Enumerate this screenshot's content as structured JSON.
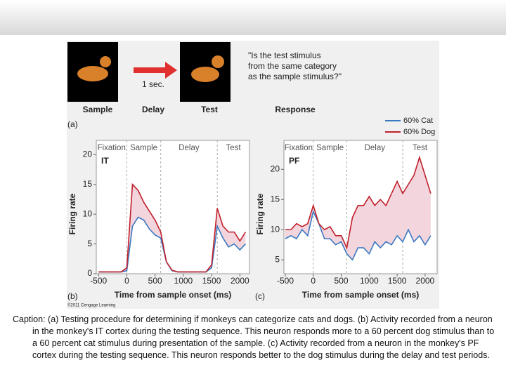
{
  "figure": {
    "sample_label": "Sample",
    "delay_label": "Delay",
    "test_label": "Test",
    "response_label": "Response",
    "interval_label": "1 sec.",
    "question_lines": [
      "\"Is the test stimulus",
      "from the same category",
      "as the sample stimulus?\""
    ],
    "panel_a": "(a)",
    "panel_b": "(b)",
    "panel_c": "(c)",
    "copyright": "©2011 Cengage Learning"
  },
  "chart_data": [
    {
      "type": "line",
      "annotation": "IT",
      "y_label": "Firing rate",
      "x_label": "Time from sample onset (ms)",
      "phases": [
        "Fixation",
        "Sample",
        "Delay",
        "Test"
      ],
      "phase_lines": [
        0,
        600,
        1600
      ],
      "fill_between": true,
      "x": [
        -500,
        -400,
        -300,
        -200,
        -100,
        0,
        100,
        200,
        300,
        400,
        500,
        600,
        700,
        800,
        900,
        1000,
        1100,
        1200,
        1300,
        1400,
        1500,
        1600,
        1700,
        1800,
        1900,
        2000,
        2100
      ],
      "series": [
        {
          "name": "60% Cat",
          "color": "#3a78c2",
          "values": [
            0.3,
            0.3,
            0.3,
            0.3,
            0.3,
            0.5,
            8,
            9.5,
            9,
            7.5,
            6.5,
            6,
            2,
            0.5,
            0.3,
            0.3,
            0.3,
            0.3,
            0.3,
            0.3,
            1,
            8,
            6,
            4.5,
            5,
            4,
            5
          ]
        },
        {
          "name": "60% Dog",
          "color": "#c0202a",
          "values": [
            0.3,
            0.3,
            0.3,
            0.3,
            0.3,
            1,
            15,
            14,
            12,
            10.5,
            9,
            7,
            2,
            0.6,
            0.3,
            0.3,
            0.3,
            0.3,
            0.3,
            0.3,
            1.5,
            11,
            8,
            7,
            7,
            5.5,
            7
          ]
        }
      ],
      "xlim": [
        -540,
        2170
      ],
      "ylim": [
        0,
        22.4
      ],
      "xticks": [
        -500,
        0,
        500,
        1000,
        1500,
        2000
      ],
      "yticks": [
        0,
        5,
        10,
        15,
        20
      ]
    },
    {
      "type": "line",
      "annotation": "PF",
      "y_label": "Firing rate",
      "x_label": "Time from sample onset (ms)",
      "phases": [
        "Fixation",
        "Sample",
        "Delay",
        "Test"
      ],
      "phase_lines": [
        0,
        600,
        1600
      ],
      "fill_between": true,
      "x": [
        -500,
        -400,
        -300,
        -200,
        -100,
        0,
        100,
        200,
        300,
        400,
        500,
        600,
        700,
        800,
        900,
        1000,
        1100,
        1200,
        1300,
        1400,
        1500,
        1600,
        1700,
        1800,
        1900,
        2000,
        2100
      ],
      "series": [
        {
          "color": "#3a78c2",
          "values": [
            8.5,
            9,
            8.5,
            10,
            9,
            13,
            11,
            8.5,
            8.5,
            7.5,
            8,
            6,
            5,
            7,
            7,
            6,
            8,
            7,
            8,
            7.5,
            9,
            8,
            10,
            8,
            9,
            7.5,
            9
          ]
        },
        {
          "color": "#c0202a",
          "values": [
            10,
            10,
            11,
            10.5,
            11,
            14,
            11,
            10,
            10.5,
            9,
            9,
            7,
            12,
            14,
            14,
            15.5,
            14,
            15,
            14,
            16,
            18,
            16,
            17.5,
            19,
            22,
            19,
            16
          ]
        }
      ],
      "xlim": [
        -525,
        2215
      ],
      "ylim": [
        2.7,
        24.8
      ],
      "xticks": [
        -500,
        0,
        500,
        1000,
        1500,
        2000
      ],
      "yticks": [
        5,
        10,
        15,
        20
      ]
    }
  ],
  "caption": "Caption: (a) Testing procedure for determining if monkeys can categorize cats and dogs. (b) Activity recorded from a neuron in the monkey's IT cortex during the testing sequence. This neuron responds more to a 60 percent dog stimulus than to a 60 percent cat stimulus during presentation of the sample. (c) Activity recorded from a neuron in the monkey's PF cortex during the testing sequence. This neuron responds better to the dog stimulus during the delay and test periods."
}
